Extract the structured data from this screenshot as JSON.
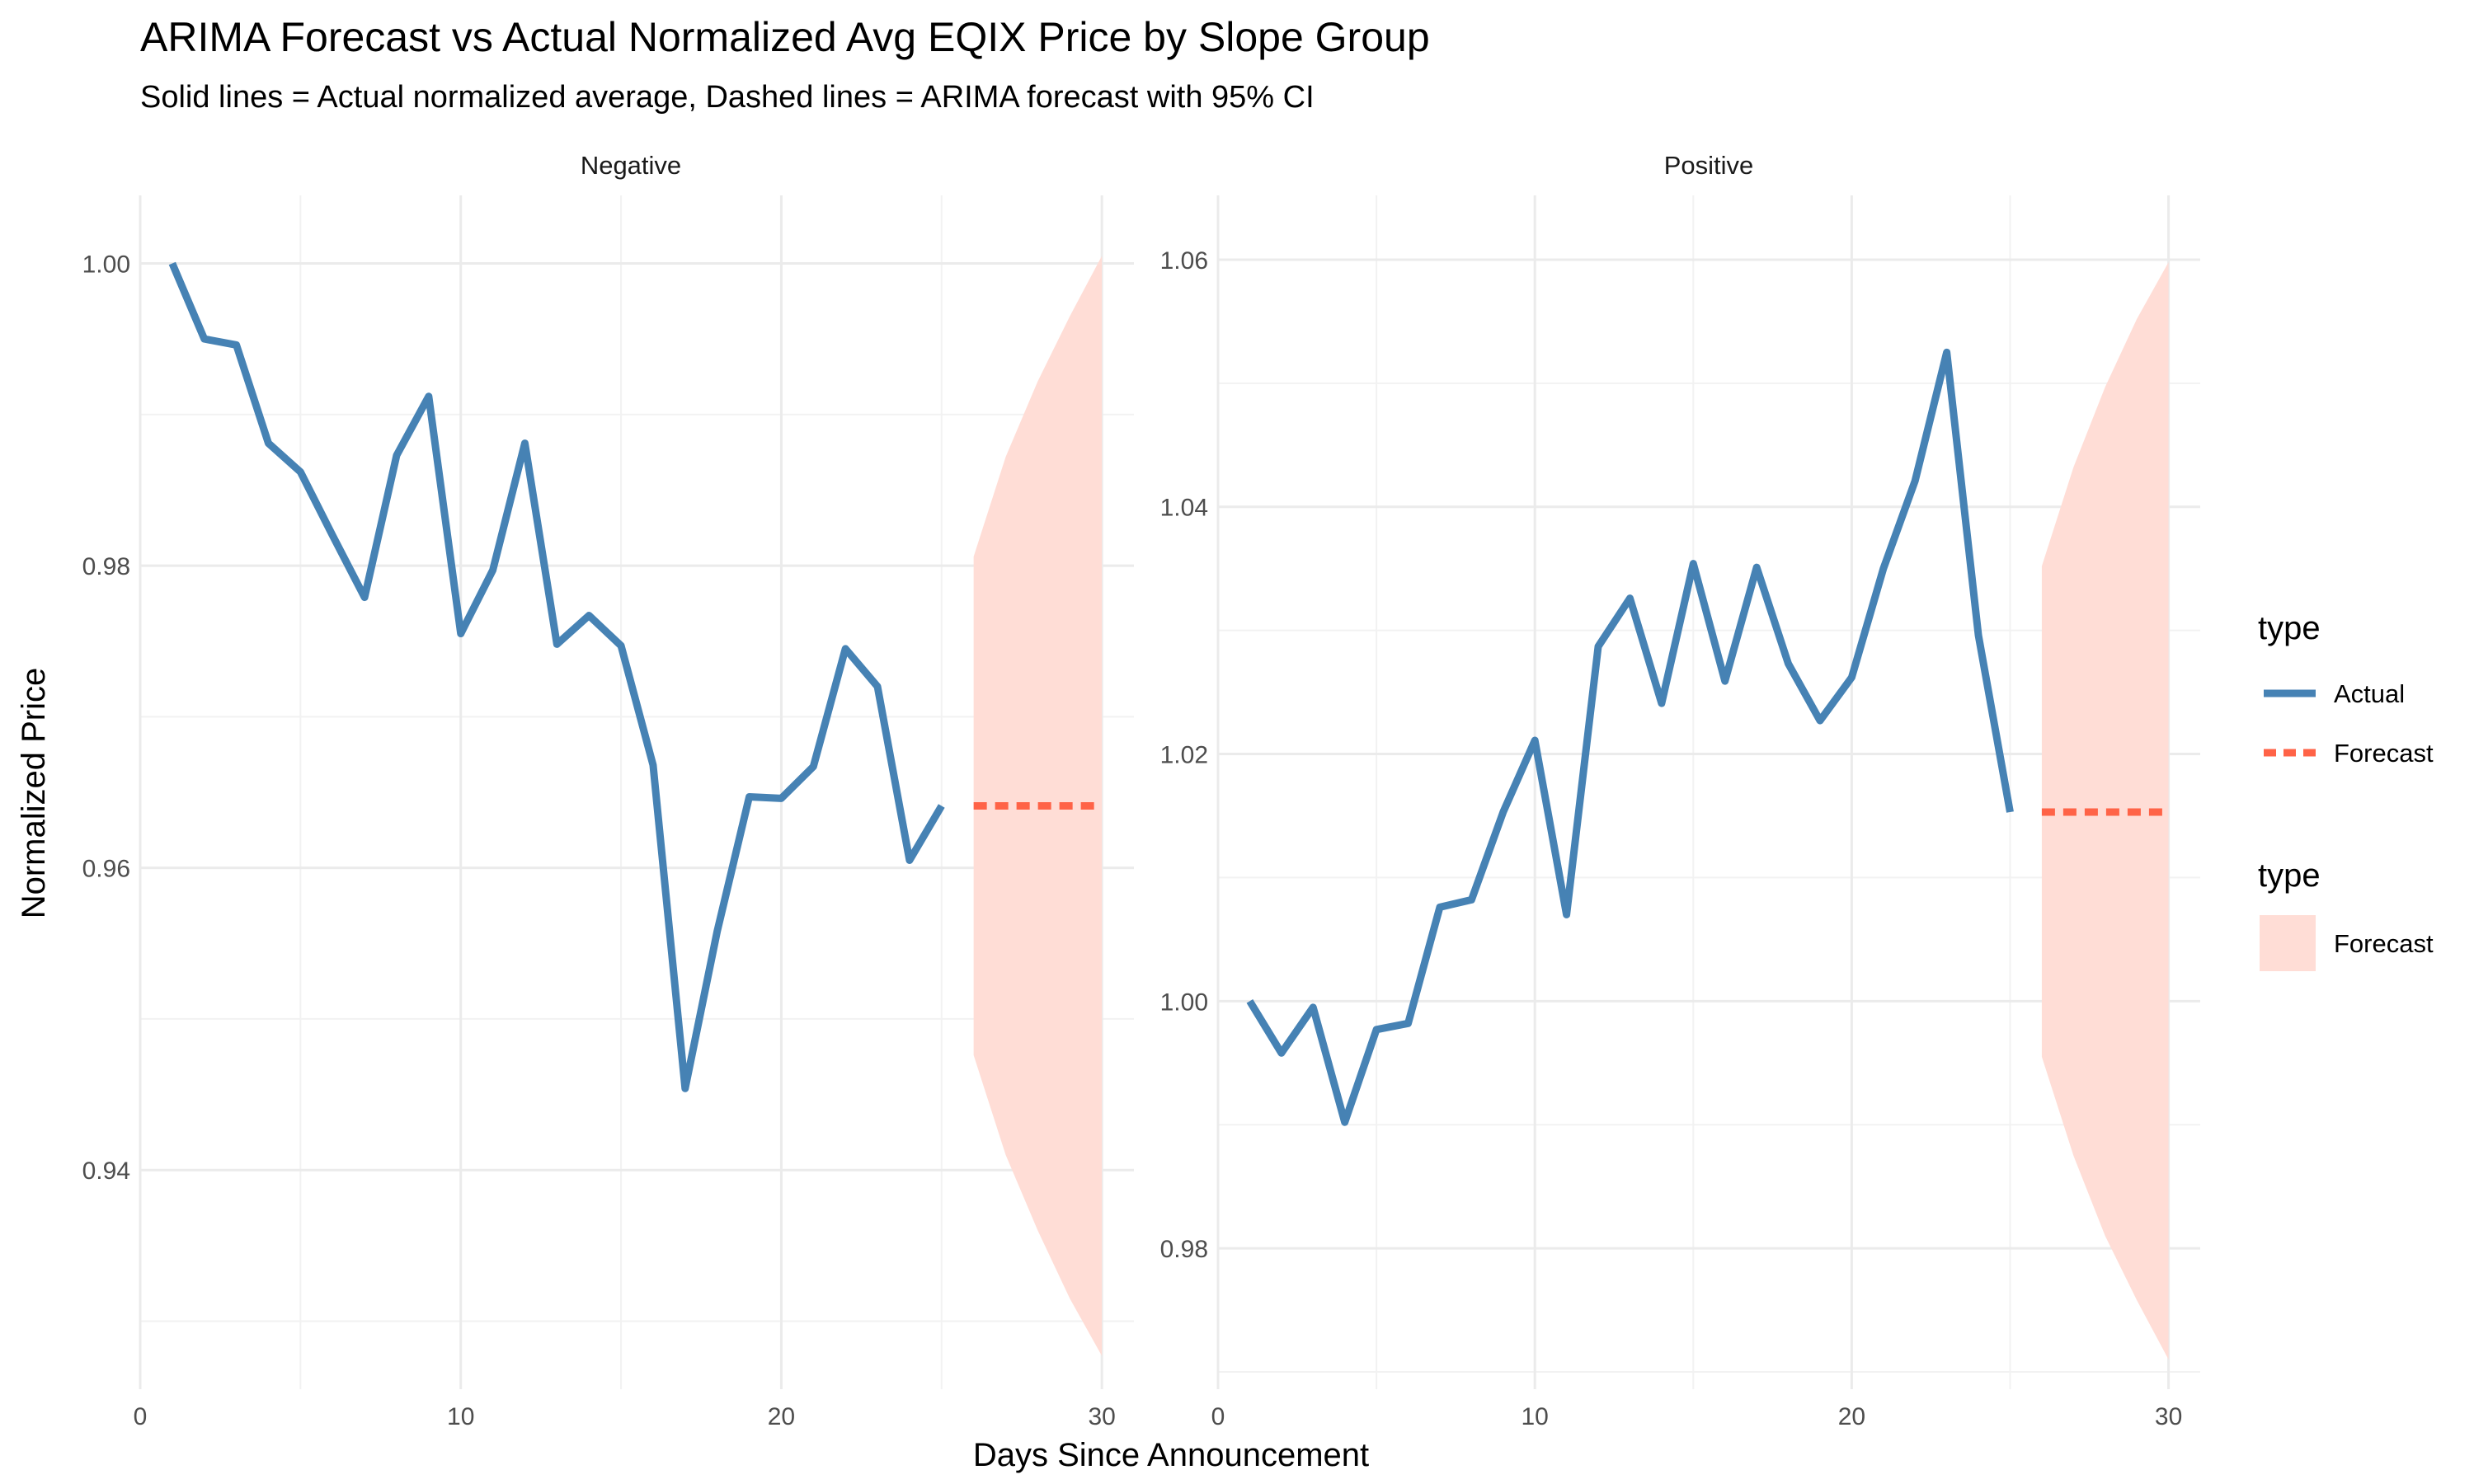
{
  "chart_data": {
    "type": "line",
    "title": "ARIMA Forecast vs Actual Normalized Avg EQIX Price by Slope Group",
    "subtitle": "Solid lines = Actual normalized average, Dashed lines = ARIMA forecast with 95% CI",
    "xlabel": "Days Since Announcement",
    "ylabel": "Normalized Price",
    "grid": true,
    "legend_position": "right",
    "colors": {
      "actual": "#4682B4",
      "forecast": "#FF6347",
      "ribbon": "#FFDDD6"
    },
    "legends": [
      {
        "title": "type",
        "entries": [
          {
            "label": "Actual",
            "style": "solid"
          },
          {
            "label": "Forecast",
            "style": "dashed"
          }
        ]
      },
      {
        "title": "type",
        "entries": [
          {
            "label": "Forecast",
            "style": "fill"
          }
        ]
      }
    ],
    "panels": [
      {
        "name": "Negative",
        "xlim": [
          0,
          31
        ],
        "ylim": [
          0.9255,
          1.0045
        ],
        "xticks": [
          0,
          10,
          20,
          30
        ],
        "yticks": [
          0.94,
          0.96,
          0.98,
          1.0
        ],
        "ytick_labels": [
          "0.94",
          "0.96",
          "0.98",
          "1.00"
        ],
        "actual": {
          "x": [
            1,
            2,
            3,
            4,
            5,
            6,
            7,
            8,
            9,
            10,
            11,
            12,
            13,
            14,
            15,
            16,
            17,
            18,
            19,
            20,
            21,
            22,
            23,
            24,
            25
          ],
          "y": [
            1.0,
            0.995,
            0.9946,
            0.9881,
            0.9862,
            0.982,
            0.9779,
            0.9873,
            0.9912,
            0.9755,
            0.9797,
            0.9881,
            0.9748,
            0.9767,
            0.9747,
            0.9668,
            0.9454,
            0.9558,
            0.9647,
            0.9646,
            0.9667,
            0.9745,
            0.972,
            0.9605,
            0.9641
          ]
        },
        "forecast": {
          "x": [
            26,
            27,
            28,
            29,
            30
          ],
          "y": [
            0.9641,
            0.9641,
            0.9641,
            0.9641,
            0.9641
          ],
          "lower": [
            0.9476,
            0.941,
            0.936,
            0.9315,
            0.9277
          ],
          "upper": [
            0.9806,
            0.9872,
            0.9922,
            0.9965,
            1.0005
          ]
        }
      },
      {
        "name": "Positive",
        "xlim": [
          0,
          31
        ],
        "ylim": [
          0.9686,
          1.0652
        ],
        "xticks": [
          0,
          10,
          20,
          30
        ],
        "yticks": [
          0.98,
          1.0,
          1.02,
          1.04,
          1.06
        ],
        "ytick_labels": [
          "0.98",
          "1.00",
          "1.02",
          "1.04",
          "1.06"
        ],
        "actual": {
          "x": [
            1,
            2,
            3,
            4,
            5,
            6,
            7,
            8,
            9,
            10,
            11,
            12,
            13,
            14,
            15,
            16,
            17,
            18,
            19,
            20,
            21,
            22,
            23,
            24,
            25
          ],
          "y": [
            1.0,
            0.9958,
            0.9995,
            0.9902,
            0.9977,
            0.9982,
            1.0076,
            1.0082,
            1.0153,
            1.0211,
            1.007,
            1.0287,
            1.0326,
            1.0241,
            1.0354,
            1.0259,
            1.0351,
            1.0273,
            1.0227,
            1.0262,
            1.035,
            1.0421,
            1.0525,
            1.0296,
            1.0153
          ]
        },
        "forecast": {
          "x": [
            26,
            27,
            28,
            29,
            30
          ],
          "y": [
            1.0153,
            1.0153,
            1.0153,
            1.0153,
            1.0153
          ],
          "lower": [
            0.9955,
            0.9875,
            0.981,
            0.9758,
            0.971
          ],
          "upper": [
            1.0352,
            1.0432,
            1.0497,
            1.0552,
            1.0598
          ]
        }
      }
    ]
  }
}
